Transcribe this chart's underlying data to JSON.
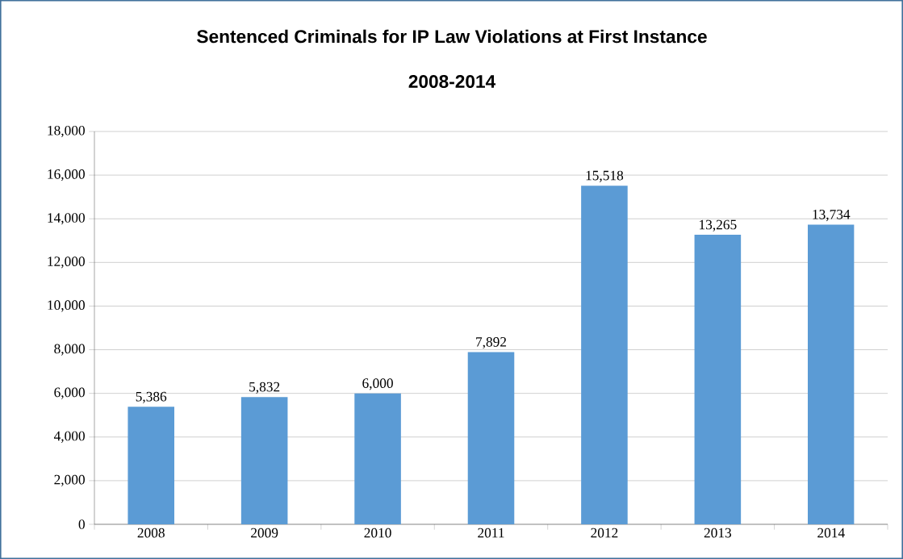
{
  "chart_data": {
    "type": "bar",
    "title": "Sentenced Criminals for IP Law Violations at First Instance",
    "subtitle": "2008-2014",
    "categories": [
      "2008",
      "2009",
      "2010",
      "2011",
      "2012",
      "2013",
      "2014"
    ],
    "values": [
      5386,
      5832,
      6000,
      7892,
      15518,
      13265,
      13734
    ],
    "value_labels": [
      "5,386",
      "5,832",
      "6,000",
      "7,892",
      "15,518",
      "13,265",
      "13,734"
    ],
    "color": "#5b9bd5",
    "ylim": [
      0,
      18000
    ],
    "yticks": [
      {
        "value": 0,
        "label": "0"
      },
      {
        "value": 2000,
        "label": "2,000"
      },
      {
        "value": 4000,
        "label": "4,000"
      },
      {
        "value": 6000,
        "label": "6,000"
      },
      {
        "value": 8000,
        "label": "8,000"
      },
      {
        "value": 10000,
        "label": "10,000"
      },
      {
        "value": 12000,
        "label": "12,000"
      },
      {
        "value": 14000,
        "label": "14,000"
      },
      {
        "value": 16000,
        "label": "16,000"
      },
      {
        "value": 18000,
        "label": "18,000"
      }
    ],
    "grid": "y"
  }
}
